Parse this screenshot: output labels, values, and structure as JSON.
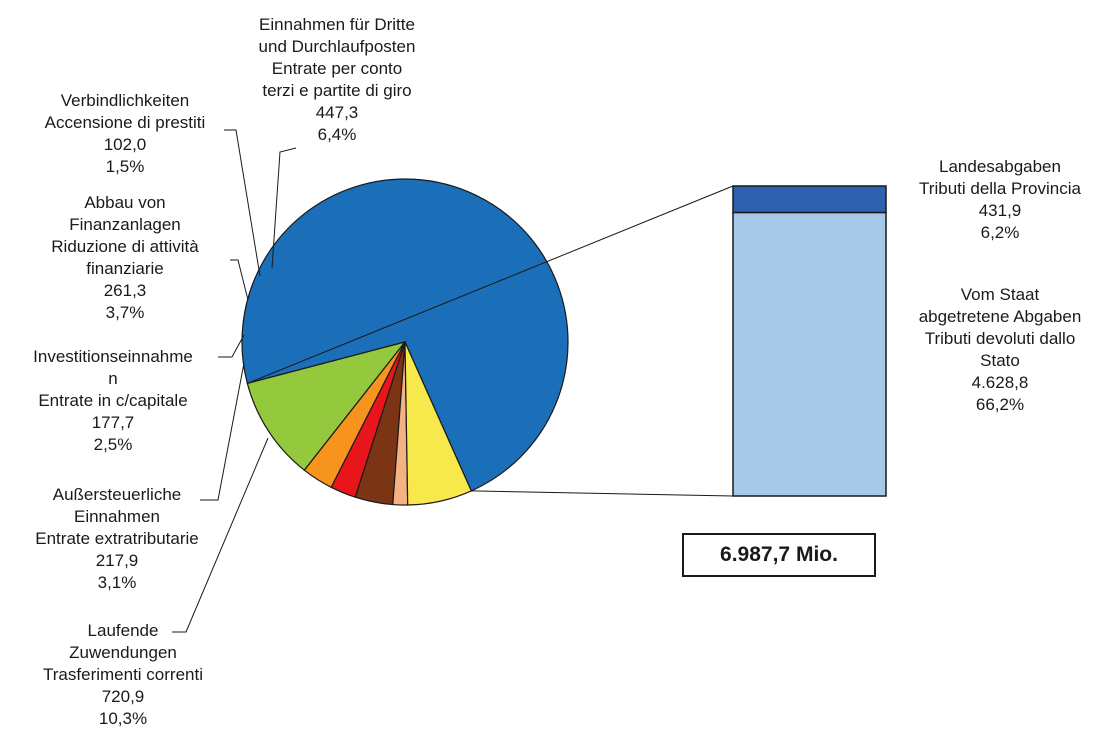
{
  "chart_data": {
    "type": "pie",
    "total_label": "6.987,7 Mio.",
    "slices": [
      {
        "key": "tax",
        "name_lines": [],
        "value": 5060.7,
        "display_value": "",
        "percent": 72.4,
        "display_percent": "",
        "color": "#1a6fb8"
      },
      {
        "key": "current_transfers",
        "name_lines": [
          "Laufende",
          "Zuwendungen",
          "Trasferimenti correnti"
        ],
        "value": 720.9,
        "display_value": "720,9",
        "percent": 10.3,
        "display_percent": "10,3%",
        "color": "#94c83d"
      },
      {
        "key": "extra_tax",
        "name_lines": [
          "Außersteuerliche",
          "Einnahmen",
          "Entrate extratributarie"
        ],
        "value": 217.9,
        "display_value": "217,9",
        "percent": 3.1,
        "display_percent": "3,1%",
        "color": "#f7941d"
      },
      {
        "key": "capital",
        "name_lines": [
          "Investitionseinnahme",
          "n",
          "Entrate in c/capitale"
        ],
        "value": 177.7,
        "display_value": "177,7",
        "percent": 2.5,
        "display_percent": "2,5%",
        "color": "#e8161b"
      },
      {
        "key": "financial_assets",
        "name_lines": [
          "Abbau von",
          "Finanzanlagen",
          "Riduzione di attività",
          "finanziarie"
        ],
        "value": 261.3,
        "display_value": "261,3",
        "percent": 3.7,
        "display_percent": "3,7%",
        "color": "#7b3414"
      },
      {
        "key": "loans",
        "name_lines": [
          "Verbindlichkeiten",
          "Accensione di prestiti"
        ],
        "value": 102.0,
        "display_value": "102,0",
        "percent": 1.5,
        "display_percent": "1,5%",
        "color": "#f4b183"
      },
      {
        "key": "third_party",
        "name_lines": [
          "Einnahmen für Dritte",
          "und Durchlaufposten",
          "Entrate per conto",
          "terzi e partite di giro"
        ],
        "value": 447.3,
        "display_value": "447,3",
        "percent": 6.4,
        "display_percent": "6,4%",
        "color": "#f7e94b"
      }
    ],
    "breakdown": {
      "of_slice": "tax",
      "segments": [
        {
          "key": "state",
          "name_lines": [
            "Vom Staat",
            "abgetretene Abgaben",
            "Tributi devoluti dallo",
            "Stato"
          ],
          "value": 4628.8,
          "display_value": "4.628,8",
          "percent": 66.2,
          "display_percent": "66,2%",
          "color": "#a6c9ea"
        },
        {
          "key": "province",
          "name_lines": [
            "Landesabgaben",
            "Tributi della Provincia"
          ],
          "value": 431.9,
          "display_value": "431,9",
          "percent": 6.2,
          "display_percent": "6,2%",
          "color": "#2e62b0"
        }
      ]
    }
  }
}
